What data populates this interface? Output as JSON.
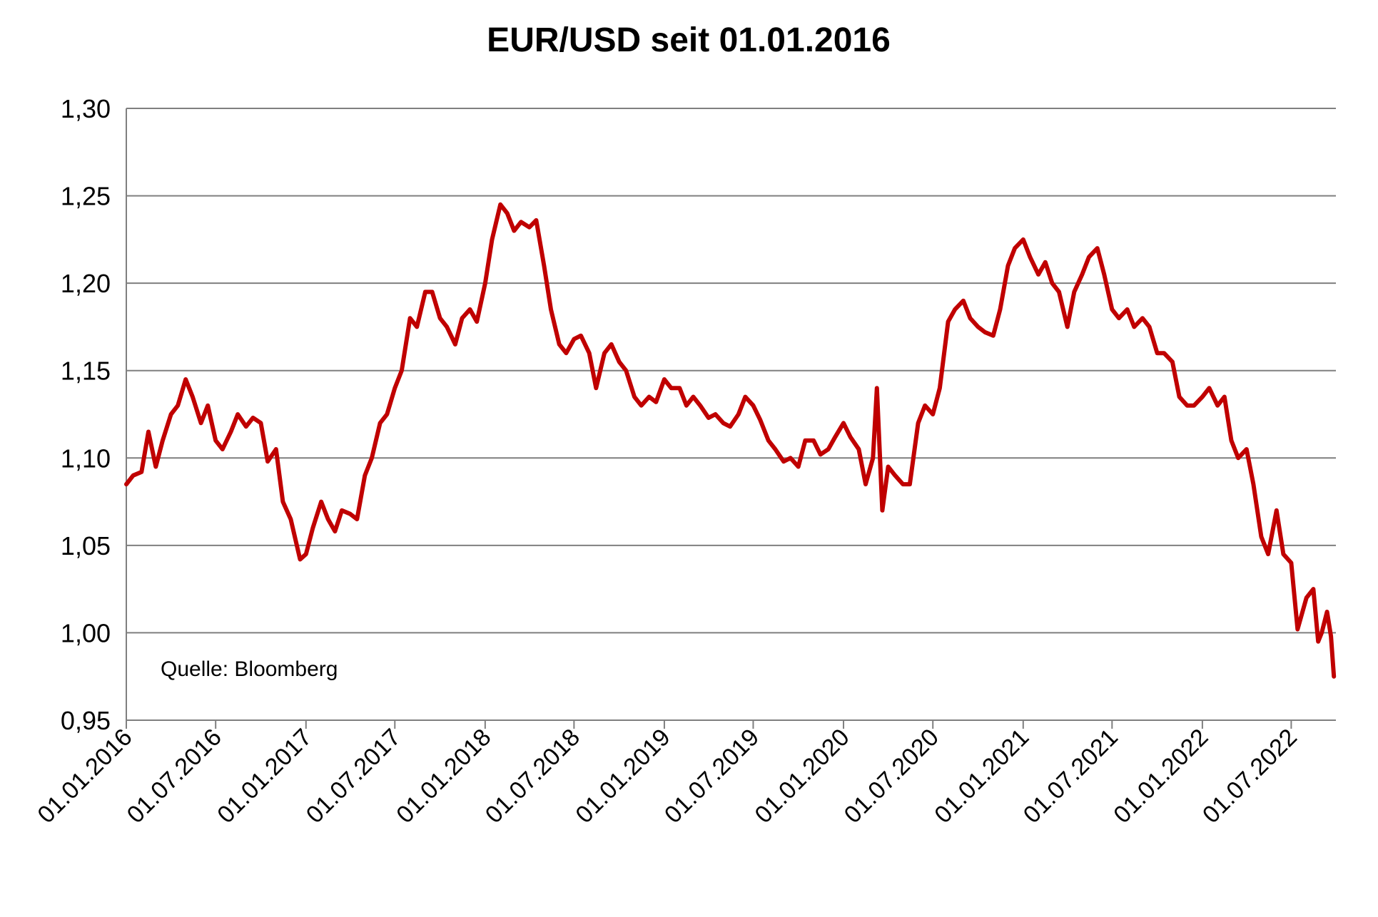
{
  "chart_data": {
    "type": "line",
    "title": "EUR/USD seit 01.01.2016",
    "annotation": "Quelle: Bloomberg",
    "ylim": [
      0.95,
      1.3
    ],
    "y_ticks": [
      {
        "value": 0.95,
        "label": "0,95"
      },
      {
        "value": 1.0,
        "label": "1,00"
      },
      {
        "value": 1.05,
        "label": "1,05"
      },
      {
        "value": 1.1,
        "label": "1,10"
      },
      {
        "value": 1.15,
        "label": "1,15"
      },
      {
        "value": 1.2,
        "label": "1,20"
      },
      {
        "value": 1.25,
        "label": "1,25"
      },
      {
        "value": 1.3,
        "label": "1,30"
      }
    ],
    "x_range": [
      "2016-01-01",
      "2022-09-30"
    ],
    "x_ticks": [
      "01.01.2016",
      "01.07.2016",
      "01.01.2017",
      "01.07.2017",
      "01.01.2018",
      "01.07.2018",
      "01.01.2019",
      "01.07.2019",
      "01.01.2020",
      "01.07.2020",
      "01.01.2021",
      "01.07.2021",
      "01.01.2022",
      "01.07.2022"
    ],
    "grid": true,
    "legend": "none",
    "series": [
      {
        "color": "#c00000",
        "points": [
          [
            "2016-01-01",
            1.085
          ],
          [
            "2016-01-15",
            1.09
          ],
          [
            "2016-02-01",
            1.092
          ],
          [
            "2016-02-15",
            1.115
          ],
          [
            "2016-03-01",
            1.095
          ],
          [
            "2016-03-15",
            1.11
          ],
          [
            "2016-04-01",
            1.125
          ],
          [
            "2016-04-15",
            1.13
          ],
          [
            "2016-05-01",
            1.145
          ],
          [
            "2016-05-15",
            1.135
          ],
          [
            "2016-06-01",
            1.12
          ],
          [
            "2016-06-15",
            1.13
          ],
          [
            "2016-07-01",
            1.11
          ],
          [
            "2016-07-15",
            1.105
          ],
          [
            "2016-08-01",
            1.115
          ],
          [
            "2016-08-15",
            1.125
          ],
          [
            "2016-09-01",
            1.118
          ],
          [
            "2016-09-15",
            1.123
          ],
          [
            "2016-10-01",
            1.12
          ],
          [
            "2016-10-15",
            1.098
          ],
          [
            "2016-11-01",
            1.105
          ],
          [
            "2016-11-15",
            1.075
          ],
          [
            "2016-12-01",
            1.065
          ],
          [
            "2016-12-20",
            1.042
          ],
          [
            "2017-01-01",
            1.045
          ],
          [
            "2017-01-15",
            1.06
          ],
          [
            "2017-02-01",
            1.075
          ],
          [
            "2017-02-15",
            1.065
          ],
          [
            "2017-03-01",
            1.058
          ],
          [
            "2017-03-15",
            1.07
          ],
          [
            "2017-04-01",
            1.068
          ],
          [
            "2017-04-15",
            1.065
          ],
          [
            "2017-05-01",
            1.09
          ],
          [
            "2017-05-15",
            1.1
          ],
          [
            "2017-06-01",
            1.12
          ],
          [
            "2017-06-15",
            1.125
          ],
          [
            "2017-07-01",
            1.14
          ],
          [
            "2017-07-15",
            1.15
          ],
          [
            "2017-08-01",
            1.18
          ],
          [
            "2017-08-15",
            1.175
          ],
          [
            "2017-09-01",
            1.195
          ],
          [
            "2017-09-15",
            1.195
          ],
          [
            "2017-10-01",
            1.18
          ],
          [
            "2017-10-15",
            1.175
          ],
          [
            "2017-11-01",
            1.165
          ],
          [
            "2017-11-15",
            1.18
          ],
          [
            "2017-12-01",
            1.185
          ],
          [
            "2017-12-15",
            1.178
          ],
          [
            "2018-01-01",
            1.2
          ],
          [
            "2018-01-15",
            1.225
          ],
          [
            "2018-02-01",
            1.245
          ],
          [
            "2018-02-15",
            1.24
          ],
          [
            "2018-03-01",
            1.23
          ],
          [
            "2018-03-15",
            1.235
          ],
          [
            "2018-04-01",
            1.232
          ],
          [
            "2018-04-15",
            1.236
          ],
          [
            "2018-05-01",
            1.21
          ],
          [
            "2018-05-15",
            1.185
          ],
          [
            "2018-06-01",
            1.165
          ],
          [
            "2018-06-15",
            1.16
          ],
          [
            "2018-07-01",
            1.168
          ],
          [
            "2018-07-15",
            1.17
          ],
          [
            "2018-08-01",
            1.16
          ],
          [
            "2018-08-15",
            1.14
          ],
          [
            "2018-09-01",
            1.16
          ],
          [
            "2018-09-15",
            1.165
          ],
          [
            "2018-10-01",
            1.155
          ],
          [
            "2018-10-15",
            1.15
          ],
          [
            "2018-11-01",
            1.135
          ],
          [
            "2018-11-15",
            1.13
          ],
          [
            "2018-12-01",
            1.135
          ],
          [
            "2018-12-15",
            1.132
          ],
          [
            "2019-01-01",
            1.145
          ],
          [
            "2019-01-15",
            1.14
          ],
          [
            "2019-02-01",
            1.14
          ],
          [
            "2019-02-15",
            1.13
          ],
          [
            "2019-03-01",
            1.135
          ],
          [
            "2019-03-15",
            1.13
          ],
          [
            "2019-04-01",
            1.123
          ],
          [
            "2019-04-15",
            1.125
          ],
          [
            "2019-05-01",
            1.12
          ],
          [
            "2019-05-15",
            1.118
          ],
          [
            "2019-06-01",
            1.125
          ],
          [
            "2019-06-15",
            1.135
          ],
          [
            "2019-07-01",
            1.13
          ],
          [
            "2019-07-15",
            1.122
          ],
          [
            "2019-08-01",
            1.11
          ],
          [
            "2019-08-15",
            1.105
          ],
          [
            "2019-09-01",
            1.098
          ],
          [
            "2019-09-15",
            1.1
          ],
          [
            "2019-10-01",
            1.095
          ],
          [
            "2019-10-15",
            1.11
          ],
          [
            "2019-11-01",
            1.11
          ],
          [
            "2019-11-15",
            1.102
          ],
          [
            "2019-12-01",
            1.105
          ],
          [
            "2019-12-15",
            1.112
          ],
          [
            "2020-01-01",
            1.12
          ],
          [
            "2020-01-15",
            1.112
          ],
          [
            "2020-02-01",
            1.105
          ],
          [
            "2020-02-15",
            1.085
          ],
          [
            "2020-03-01",
            1.1
          ],
          [
            "2020-03-09",
            1.14
          ],
          [
            "2020-03-20",
            1.07
          ],
          [
            "2020-04-01",
            1.095
          ],
          [
            "2020-04-15",
            1.09
          ],
          [
            "2020-05-01",
            1.085
          ],
          [
            "2020-05-15",
            1.085
          ],
          [
            "2020-06-01",
            1.12
          ],
          [
            "2020-06-15",
            1.13
          ],
          [
            "2020-07-01",
            1.125
          ],
          [
            "2020-07-15",
            1.14
          ],
          [
            "2020-08-01",
            1.178
          ],
          [
            "2020-08-15",
            1.185
          ],
          [
            "2020-09-01",
            1.19
          ],
          [
            "2020-09-15",
            1.18
          ],
          [
            "2020-10-01",
            1.175
          ],
          [
            "2020-10-15",
            1.172
          ],
          [
            "2020-11-01",
            1.17
          ],
          [
            "2020-11-15",
            1.185
          ],
          [
            "2020-12-01",
            1.21
          ],
          [
            "2020-12-15",
            1.22
          ],
          [
            "2021-01-01",
            1.225
          ],
          [
            "2021-01-15",
            1.215
          ],
          [
            "2021-02-01",
            1.205
          ],
          [
            "2021-02-15",
            1.212
          ],
          [
            "2021-03-01",
            1.2
          ],
          [
            "2021-03-15",
            1.195
          ],
          [
            "2021-04-01",
            1.175
          ],
          [
            "2021-04-15",
            1.195
          ],
          [
            "2021-05-01",
            1.205
          ],
          [
            "2021-05-15",
            1.215
          ],
          [
            "2021-06-01",
            1.22
          ],
          [
            "2021-06-15",
            1.205
          ],
          [
            "2021-07-01",
            1.185
          ],
          [
            "2021-07-15",
            1.18
          ],
          [
            "2021-08-01",
            1.185
          ],
          [
            "2021-08-15",
            1.175
          ],
          [
            "2021-09-01",
            1.18
          ],
          [
            "2021-09-15",
            1.175
          ],
          [
            "2021-10-01",
            1.16
          ],
          [
            "2021-10-15",
            1.16
          ],
          [
            "2021-11-01",
            1.155
          ],
          [
            "2021-11-15",
            1.135
          ],
          [
            "2021-12-01",
            1.13
          ],
          [
            "2021-12-15",
            1.13
          ],
          [
            "2022-01-01",
            1.135
          ],
          [
            "2022-01-15",
            1.14
          ],
          [
            "2022-02-01",
            1.13
          ],
          [
            "2022-02-15",
            1.135
          ],
          [
            "2022-03-01",
            1.11
          ],
          [
            "2022-03-15",
            1.1
          ],
          [
            "2022-04-01",
            1.105
          ],
          [
            "2022-04-15",
            1.085
          ],
          [
            "2022-05-01",
            1.055
          ],
          [
            "2022-05-15",
            1.045
          ],
          [
            "2022-06-01",
            1.07
          ],
          [
            "2022-06-15",
            1.045
          ],
          [
            "2022-07-01",
            1.04
          ],
          [
            "2022-07-14",
            1.002
          ],
          [
            "2022-08-01",
            1.02
          ],
          [
            "2022-08-15",
            1.025
          ],
          [
            "2022-08-25",
            0.995
          ],
          [
            "2022-09-01",
            1.0
          ],
          [
            "2022-09-12",
            1.012
          ],
          [
            "2022-09-20",
            0.998
          ],
          [
            "2022-09-26",
            0.975
          ]
        ]
      }
    ]
  }
}
